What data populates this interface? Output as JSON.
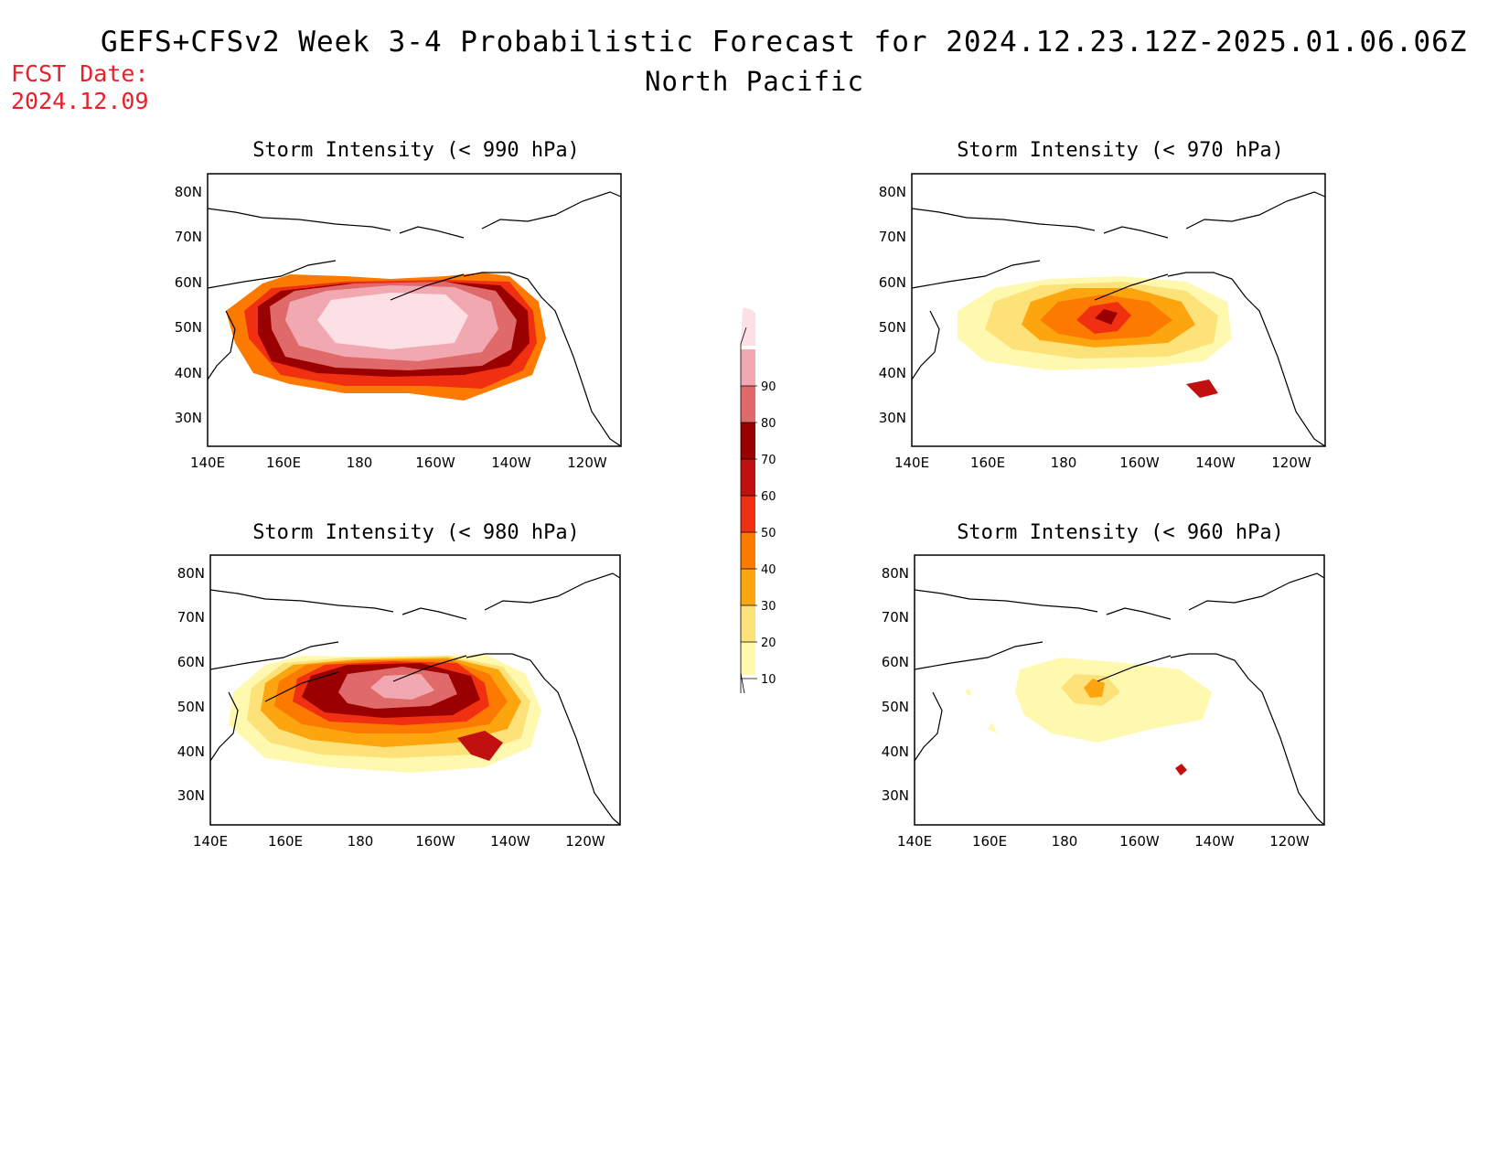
{
  "header": {
    "title": "GEFS+CFSv2 Week 3-4 Probabilistic Forecast for 2024.12.23.12Z-2025.01.06.06Z",
    "region": "North Pacific",
    "fcst_label": "FCST Date:",
    "fcst_date": "2024.12.09"
  },
  "axes": {
    "lat_labels": [
      "80N",
      "70N",
      "60N",
      "50N",
      "40N",
      "30N"
    ],
    "lon_labels": [
      "140E",
      "160E",
      "180",
      "160W",
      "140W",
      "120W"
    ]
  },
  "panels": [
    {
      "id": "p990",
      "title": "Storm Intensity (< 990 hPa)"
    },
    {
      "id": "p970",
      "title": "Storm Intensity (< 970 hPa)"
    },
    {
      "id": "p980",
      "title": "Storm Intensity (< 980 hPa)"
    },
    {
      "id": "p960",
      "title": "Storm Intensity (< 960 hPa)"
    }
  ],
  "colorbar": {
    "levels": [
      "10",
      "20",
      "30",
      "40",
      "50",
      "60",
      "70",
      "80",
      "90"
    ],
    "colors": [
      "#fff9b0",
      "#fde27a",
      "#fda50f",
      "#fd7a00",
      "#f03010",
      "#c01010",
      "#9a0000",
      "#e06a6a",
      "#f2a8b0",
      "#fde0e6"
    ]
  }
}
